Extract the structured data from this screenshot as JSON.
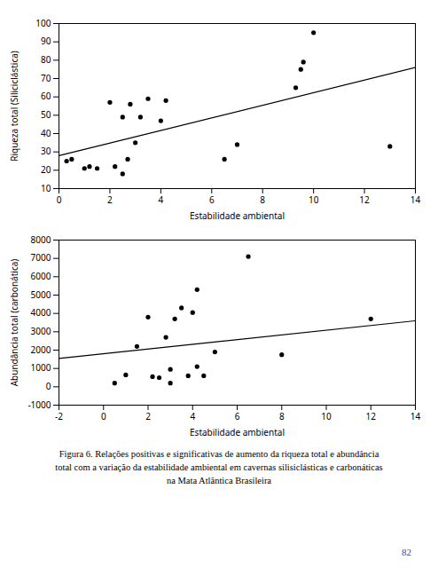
{
  "chart_data": [
    {
      "type": "scatter",
      "x_label": "Estabilidade ambiental",
      "y_label": "Riqueza total (Siliciclástica)",
      "xlim": [
        0,
        14
      ],
      "ylim": [
        10,
        100
      ],
      "xticks": [
        0,
        2,
        4,
        6,
        8,
        10,
        12,
        14
      ],
      "yticks": [
        10,
        20,
        30,
        40,
        50,
        60,
        70,
        80,
        90,
        100
      ],
      "series": [
        {
          "type": "scatter",
          "color": "black",
          "marker": "circle",
          "x": [
            0.3,
            0.5,
            1.0,
            1.2,
            1.5,
            2.0,
            2.2,
            2.5,
            2.5,
            2.7,
            2.8,
            3.0,
            3.2,
            3.5,
            4.0,
            4.2,
            6.5,
            7.0,
            9.3,
            9.5,
            9.6,
            10.0,
            13.0
          ],
          "values": [
            25,
            26,
            21,
            22,
            21,
            57,
            22,
            49,
            18,
            26,
            56,
            35,
            49,
            59,
            47,
            58,
            26,
            34,
            65,
            75,
            79,
            95,
            33
          ]
        },
        {
          "type": "line",
          "color": "black",
          "line_style": "solid",
          "x": [
            0,
            14
          ],
          "values": [
            28,
            76
          ]
        }
      ]
    },
    {
      "type": "scatter",
      "x_label": "Estabilidade ambiental",
      "y_label": "Abundância total (carbonática)",
      "xlim": [
        -2,
        14
      ],
      "ylim": [
        -1000,
        8000
      ],
      "xticks": [
        -2,
        0,
        2,
        4,
        6,
        8,
        10,
        12,
        14
      ],
      "yticks": [
        -1000,
        0,
        1000,
        2000,
        3000,
        4000,
        5000,
        6000,
        7000,
        8000
      ],
      "series": [
        {
          "type": "scatter",
          "color": "black",
          "marker": "circle",
          "x": [
            0.5,
            1.0,
            1.5,
            2.0,
            2.2,
            2.5,
            2.8,
            3.0,
            3.0,
            3.2,
            3.5,
            3.8,
            4.0,
            4.2,
            4.2,
            4.5,
            5.0,
            6.5,
            8.0,
            12.0
          ],
          "values": [
            200,
            650,
            2200,
            3800,
            550,
            500,
            2700,
            950,
            200,
            3700,
            4300,
            600,
            4050,
            5300,
            1100,
            600,
            1900,
            7100,
            1750,
            3700
          ]
        },
        {
          "type": "line",
          "color": "black",
          "line_style": "solid",
          "x": [
            -2,
            14
          ],
          "values": [
            1550,
            3600
          ]
        }
      ],
      "annotations": [
        "Figura 6. Relações positivas e significativas de aumento da riqueza total e abundância",
        "total com a variação da estabilidade ambiental em cavernas silisiclásticas e carbonáticas",
        "na Mata Atlântica Brasileira",
        "82"
      ]
    }
  ]
}
